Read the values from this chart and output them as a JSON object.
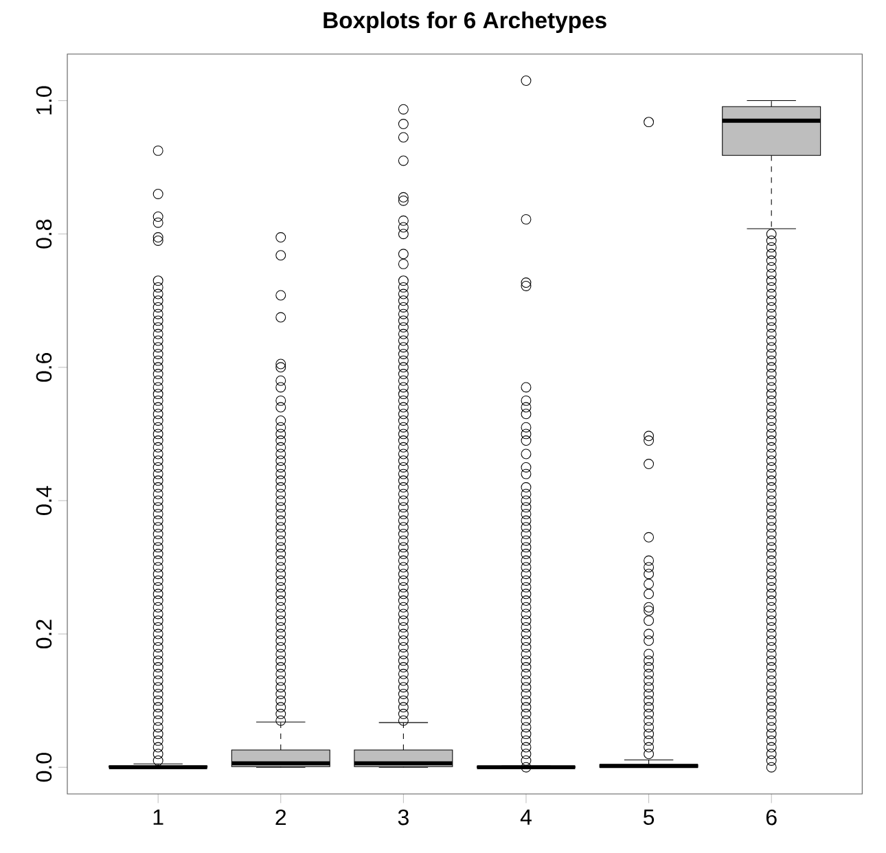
{
  "chart_data": {
    "type": "box",
    "title": "Boxplots for 6 Archetypes",
    "categories": [
      "1",
      "2",
      "3",
      "4",
      "5",
      "6"
    ],
    "color": "#bebebe",
    "marker": "circle",
    "ylim": [
      -0.04,
      1.07
    ],
    "yticks": [
      {
        "value": 0,
        "label": "0.0"
      },
      {
        "value": 0.2,
        "label": "0.2"
      },
      {
        "value": 0.4,
        "label": "0.4"
      },
      {
        "value": 0.6,
        "label": "0.6"
      },
      {
        "value": 0.8,
        "label": "0.8"
      },
      {
        "value": 1,
        "label": "1.0"
      }
    ],
    "boxes": [
      {
        "low": 0,
        "q1": 0,
        "median": 0,
        "q3": 0.002,
        "high": 0.005,
        "outliers": [
          0.01,
          0.02,
          0.03,
          0.04,
          0.05,
          0.06,
          0.07,
          0.08,
          0.09,
          0.1,
          0.11,
          0.12,
          0.13,
          0.14,
          0.15,
          0.16,
          0.17,
          0.18,
          0.19,
          0.2,
          0.21,
          0.22,
          0.23,
          0.24,
          0.25,
          0.26,
          0.27,
          0.28,
          0.29,
          0.3,
          0.31,
          0.32,
          0.33,
          0.34,
          0.35,
          0.36,
          0.37,
          0.38,
          0.39,
          0.4,
          0.41,
          0.42,
          0.43,
          0.44,
          0.45,
          0.46,
          0.47,
          0.48,
          0.49,
          0.5,
          0.51,
          0.52,
          0.53,
          0.54,
          0.55,
          0.56,
          0.57,
          0.58,
          0.59,
          0.6,
          0.61,
          0.62,
          0.63,
          0.64,
          0.65,
          0.66,
          0.67,
          0.68,
          0.69,
          0.7,
          0.71,
          0.72,
          0.73,
          0.79,
          0.795,
          0.817,
          0.826,
          0.86,
          0.925
        ]
      },
      {
        "low": 0,
        "q1": 0.001,
        "median": 0.006,
        "q3": 0.026,
        "high": 0.068,
        "outliers": [
          0.07,
          0.08,
          0.09,
          0.1,
          0.11,
          0.12,
          0.13,
          0.14,
          0.15,
          0.16,
          0.17,
          0.18,
          0.19,
          0.2,
          0.21,
          0.22,
          0.23,
          0.24,
          0.25,
          0.26,
          0.27,
          0.28,
          0.29,
          0.3,
          0.31,
          0.32,
          0.33,
          0.34,
          0.35,
          0.36,
          0.37,
          0.38,
          0.39,
          0.4,
          0.41,
          0.42,
          0.43,
          0.44,
          0.45,
          0.46,
          0.47,
          0.48,
          0.49,
          0.5,
          0.51,
          0.52,
          0.54,
          0.55,
          0.57,
          0.58,
          0.6,
          0.605,
          0.675,
          0.708,
          0.768,
          0.795
        ]
      },
      {
        "low": 0,
        "q1": 0.001,
        "median": 0.006,
        "q3": 0.026,
        "high": 0.067,
        "outliers": [
          0.07,
          0.08,
          0.09,
          0.1,
          0.11,
          0.12,
          0.13,
          0.14,
          0.15,
          0.16,
          0.17,
          0.18,
          0.19,
          0.2,
          0.21,
          0.22,
          0.23,
          0.24,
          0.25,
          0.26,
          0.27,
          0.28,
          0.29,
          0.3,
          0.31,
          0.32,
          0.33,
          0.34,
          0.35,
          0.36,
          0.37,
          0.38,
          0.39,
          0.4,
          0.41,
          0.42,
          0.43,
          0.44,
          0.45,
          0.46,
          0.47,
          0.48,
          0.49,
          0.5,
          0.51,
          0.52,
          0.53,
          0.54,
          0.55,
          0.56,
          0.57,
          0.58,
          0.59,
          0.6,
          0.61,
          0.62,
          0.63,
          0.64,
          0.65,
          0.66,
          0.67,
          0.68,
          0.69,
          0.7,
          0.71,
          0.72,
          0.73,
          0.755,
          0.77,
          0.8,
          0.81,
          0.82,
          0.85,
          0.855,
          0.91,
          0.945,
          0.965,
          0.987
        ]
      },
      {
        "low": 0,
        "q1": 0,
        "median": 0,
        "q3": 0.001,
        "high": 0.002,
        "outliers": [
          0,
          0.01,
          0.02,
          0.03,
          0.04,
          0.05,
          0.06,
          0.07,
          0.08,
          0.09,
          0.1,
          0.11,
          0.12,
          0.13,
          0.14,
          0.15,
          0.16,
          0.17,
          0.18,
          0.19,
          0.2,
          0.21,
          0.22,
          0.23,
          0.24,
          0.25,
          0.26,
          0.27,
          0.28,
          0.29,
          0.3,
          0.31,
          0.32,
          0.33,
          0.34,
          0.35,
          0.36,
          0.37,
          0.38,
          0.39,
          0.4,
          0.41,
          0.42,
          0.44,
          0.45,
          0.47,
          0.49,
          0.5,
          0.51,
          0.53,
          0.54,
          0.55,
          0.57,
          0.722,
          0.727,
          0.822,
          1.03
        ]
      },
      {
        "low": 0,
        "q1": 0,
        "median": 0.002,
        "q3": 0.004,
        "high": 0.011,
        "outliers": [
          0.02,
          0.03,
          0.04,
          0.05,
          0.06,
          0.07,
          0.08,
          0.09,
          0.1,
          0.11,
          0.12,
          0.13,
          0.14,
          0.15,
          0.16,
          0.17,
          0.19,
          0.2,
          0.22,
          0.235,
          0.24,
          0.26,
          0.275,
          0.29,
          0.3,
          0.31,
          0.345,
          0.455,
          0.49,
          0.497,
          0.968
        ]
      },
      {
        "low": 0.808,
        "q1": 0.918,
        "median": 0.97,
        "q3": 0.991,
        "high": 1.0,
        "outliers": [
          0,
          0.01,
          0.02,
          0.03,
          0.04,
          0.05,
          0.06,
          0.07,
          0.08,
          0.09,
          0.1,
          0.11,
          0.12,
          0.13,
          0.14,
          0.15,
          0.16,
          0.17,
          0.18,
          0.19,
          0.2,
          0.21,
          0.22,
          0.23,
          0.24,
          0.25,
          0.26,
          0.27,
          0.28,
          0.29,
          0.3,
          0.31,
          0.32,
          0.33,
          0.34,
          0.35,
          0.36,
          0.37,
          0.38,
          0.39,
          0.4,
          0.41,
          0.42,
          0.43,
          0.44,
          0.45,
          0.46,
          0.47,
          0.48,
          0.49,
          0.5,
          0.51,
          0.52,
          0.53,
          0.54,
          0.55,
          0.56,
          0.57,
          0.58,
          0.59,
          0.6,
          0.61,
          0.62,
          0.63,
          0.64,
          0.65,
          0.66,
          0.67,
          0.68,
          0.69,
          0.7,
          0.71,
          0.72,
          0.73,
          0.74,
          0.75,
          0.76,
          0.77,
          0.78,
          0.79,
          0.8
        ]
      }
    ]
  }
}
